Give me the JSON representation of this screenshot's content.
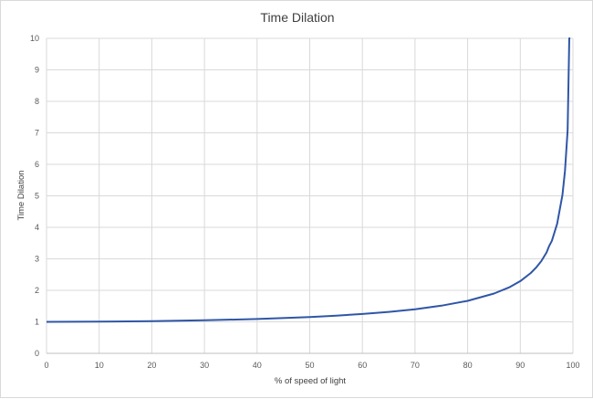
{
  "chart_data": {
    "type": "line",
    "title": "Time Dilation",
    "xlabel": "% of speed of light",
    "ylabel": "Time Dilation",
    "xlim": [
      0,
      100
    ],
    "ylim": [
      0,
      10
    ],
    "x_ticks": [
      0,
      10,
      20,
      30,
      40,
      50,
      60,
      70,
      80,
      90,
      100
    ],
    "y_ticks": [
      0,
      1,
      2,
      3,
      4,
      5,
      6,
      7,
      8,
      9,
      10
    ],
    "grid": true,
    "legend": "none",
    "series": [
      {
        "color": "#2f56a6",
        "x": [
          0,
          10,
          20,
          30,
          40,
          50,
          55,
          60,
          65,
          70,
          75,
          80,
          85,
          88,
          90,
          92,
          93,
          94,
          95,
          95.5,
          96,
          97,
          98,
          98.5,
          99,
          99.3,
          99.5
        ],
        "y": [
          1.0,
          1.005,
          1.021,
          1.048,
          1.091,
          1.155,
          1.197,
          1.25,
          1.316,
          1.4,
          1.512,
          1.667,
          1.898,
          2.105,
          2.294,
          2.552,
          2.721,
          2.931,
          3.203,
          3.412,
          3.571,
          4.113,
          5.025,
          5.795,
          7.089,
          10.0,
          10.0
        ]
      }
    ]
  }
}
